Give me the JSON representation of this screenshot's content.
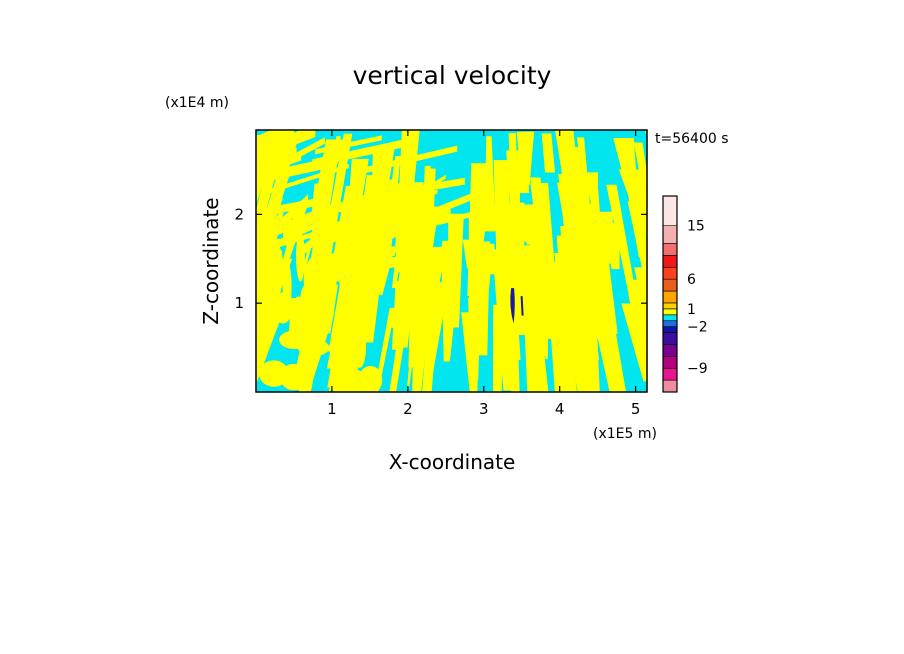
{
  "chart_data": {
    "type": "heatmap",
    "title": "vertical velocity",
    "xlabel": "X-coordinate",
    "ylabel": "Z-coordinate",
    "x_unit": "(x1E5 m)",
    "y_unit": "(x1E4 m)",
    "time_label": "t=56400 s",
    "xlim": [
      0,
      5.15
    ],
    "ylim": [
      0,
      2.95
    ],
    "x_ticks": [
      {
        "value": 1,
        "label": "1"
      },
      {
        "value": 2,
        "label": "2"
      },
      {
        "value": 3,
        "label": "3"
      },
      {
        "value": 4,
        "label": "4"
      },
      {
        "value": 5,
        "label": "5"
      }
    ],
    "y_ticks": [
      {
        "value": 1,
        "label": "1"
      },
      {
        "value": 2,
        "label": "2"
      }
    ],
    "field_description_colors": {
      "positive_weak": "#ffff00",
      "negative_weak": "#00e5ee",
      "strong_negative_core": "#1a1aa0"
    },
    "colorbar": {
      "levels": [
        {
          "color": "#f08ea0",
          "from": -13,
          "to": -11
        },
        {
          "color": "#e8158e",
          "from": -11,
          "to": -9
        },
        {
          "color": "#b5007e",
          "from": -9,
          "to": -7
        },
        {
          "color": "#7a0090",
          "from": -7,
          "to": -5
        },
        {
          "color": "#3a0fa0",
          "from": -5,
          "to": -3
        },
        {
          "color": "#1414a8",
          "from": -3,
          "to": -2
        },
        {
          "color": "#1e6fe6",
          "from": -2,
          "to": -1
        },
        {
          "color": "#00e5ee",
          "from": -1,
          "to": 0
        },
        {
          "color": "#ffff00",
          "from": 0,
          "to": 1
        },
        {
          "color": "#ffd200",
          "from": 1,
          "to": 2
        },
        {
          "color": "#ffa500",
          "from": 2,
          "to": 4
        },
        {
          "color": "#e8601c",
          "from": 4,
          "to": 6
        },
        {
          "color": "#ff4020",
          "from": 6,
          "to": 8
        },
        {
          "color": "#f01818",
          "from": 8,
          "to": 10
        },
        {
          "color": "#f07070",
          "from": 10,
          "to": 12
        },
        {
          "color": "#f4b0b0",
          "from": 12,
          "to": 15
        },
        {
          "color": "#fbe6e6",
          "from": 15,
          "to": 20
        }
      ],
      "tick_labels": [
        {
          "value": 15,
          "label": "15"
        },
        {
          "value": 6,
          "label": "6"
        },
        {
          "value": 1,
          "label": "1"
        },
        {
          "value": -2,
          "label": "−2"
        },
        {
          "value": -9,
          "label": "−9"
        }
      ]
    }
  }
}
